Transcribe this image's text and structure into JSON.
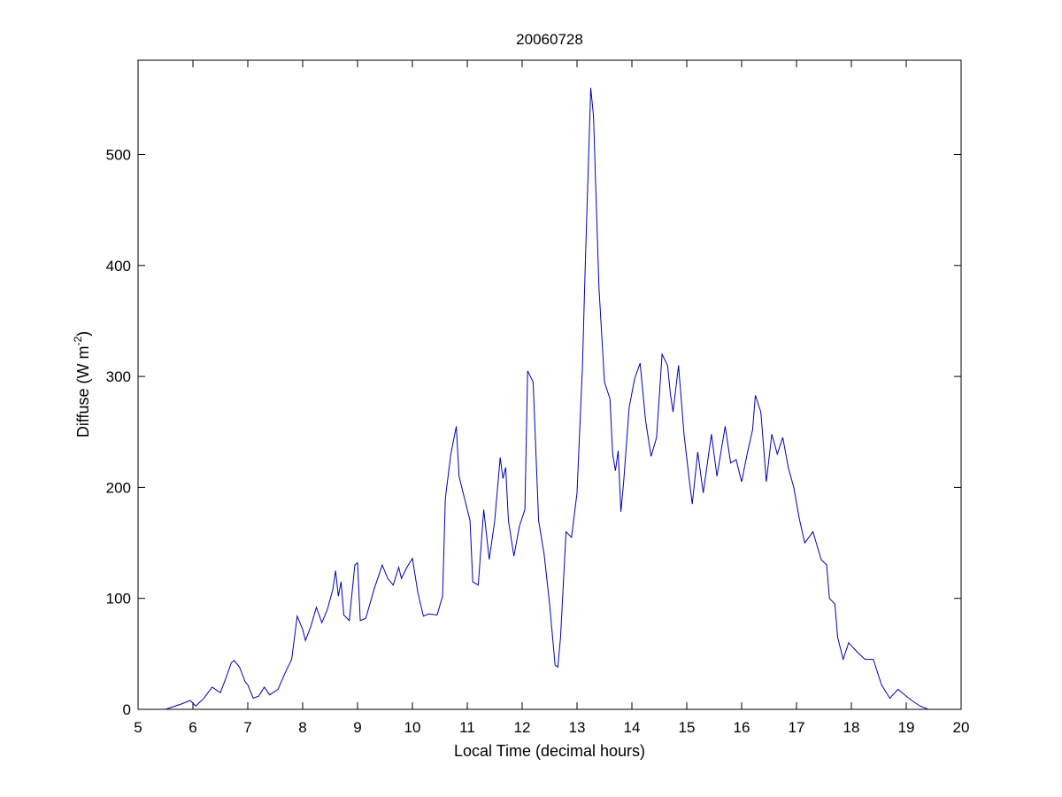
{
  "chart_data": {
    "type": "line",
    "title": "20060728",
    "xlabel": "Local Time (decimal hours)",
    "ylabel": {
      "base": "Diffuse (W m",
      "superscript": "-2",
      "suffix": ")"
    },
    "xlim": [
      5,
      20
    ],
    "ylim": [
      0,
      585
    ],
    "xticks": [
      5,
      6,
      7,
      8,
      9,
      10,
      11,
      12,
      13,
      14,
      15,
      16,
      17,
      18,
      19,
      20
    ],
    "yticks": [
      0,
      100,
      200,
      300,
      400,
      500
    ],
    "grid": false,
    "line_color": "#0000b4",
    "x": [
      5.5,
      5.8,
      5.95,
      6.05,
      6.2,
      6.35,
      6.5,
      6.6,
      6.7,
      6.75,
      6.85,
      6.95,
      7.0,
      7.1,
      7.2,
      7.3,
      7.4,
      7.55,
      7.7,
      7.8,
      7.9,
      8.0,
      8.05,
      8.15,
      8.25,
      8.35,
      8.45,
      8.55,
      8.6,
      8.65,
      8.7,
      8.75,
      8.85,
      8.95,
      9.0,
      9.05,
      9.15,
      9.3,
      9.45,
      9.55,
      9.65,
      9.75,
      9.8,
      9.9,
      10.0,
      10.1,
      10.2,
      10.3,
      10.45,
      10.55,
      10.6,
      10.7,
      10.8,
      10.85,
      10.95,
      11.05,
      11.1,
      11.2,
      11.3,
      11.4,
      11.5,
      11.6,
      11.65,
      11.7,
      11.75,
      11.85,
      11.95,
      12.05,
      12.1,
      12.2,
      12.3,
      12.4,
      12.5,
      12.6,
      12.65,
      12.7,
      12.8,
      12.9,
      13.0,
      13.1,
      13.15,
      13.2,
      13.25,
      13.3,
      13.4,
      13.5,
      13.6,
      13.65,
      13.7,
      13.75,
      13.8,
      13.85,
      13.95,
      14.05,
      14.15,
      14.25,
      14.35,
      14.45,
      14.55,
      14.65,
      14.7,
      14.75,
      14.85,
      14.95,
      15.05,
      15.1,
      15.2,
      15.3,
      15.45,
      15.55,
      15.7,
      15.8,
      15.9,
      16.0,
      16.1,
      16.2,
      16.25,
      16.35,
      16.45,
      16.55,
      16.65,
      16.75,
      16.85,
      16.95,
      17.05,
      17.15,
      17.3,
      17.45,
      17.55,
      17.6,
      17.7,
      17.75,
      17.85,
      17.95,
      18.1,
      18.25,
      18.4,
      18.55,
      18.7,
      18.85,
      18.95,
      19.1,
      19.25,
      19.4
    ],
    "y": [
      0,
      5,
      8,
      3,
      10,
      20,
      15,
      28,
      42,
      44,
      38,
      25,
      22,
      10,
      12,
      20,
      13,
      18,
      35,
      45,
      84,
      72,
      62,
      75,
      92,
      78,
      90,
      108,
      125,
      102,
      115,
      85,
      80,
      130,
      132,
      80,
      82,
      108,
      130,
      118,
      112,
      128,
      118,
      128,
      136,
      105,
      84,
      86,
      85,
      102,
      190,
      230,
      255,
      210,
      190,
      170,
      115,
      112,
      180,
      135,
      170,
      227,
      208,
      218,
      170,
      138,
      165,
      180,
      305,
      295,
      170,
      140,
      95,
      40,
      38,
      65,
      160,
      155,
      195,
      310,
      400,
      480,
      560,
      535,
      380,
      295,
      280,
      230,
      215,
      233,
      178,
      205,
      272,
      298,
      312,
      260,
      228,
      245,
      320,
      310,
      285,
      268,
      310,
      248,
      205,
      185,
      232,
      195,
      248,
      210,
      255,
      222,
      225,
      205,
      230,
      252,
      283,
      268,
      205,
      248,
      230,
      245,
      218,
      200,
      172,
      150,
      160,
      135,
      130,
      100,
      95,
      65,
      45,
      60,
      52,
      45,
      45,
      22,
      10,
      18,
      14,
      8,
      3,
      0
    ]
  }
}
